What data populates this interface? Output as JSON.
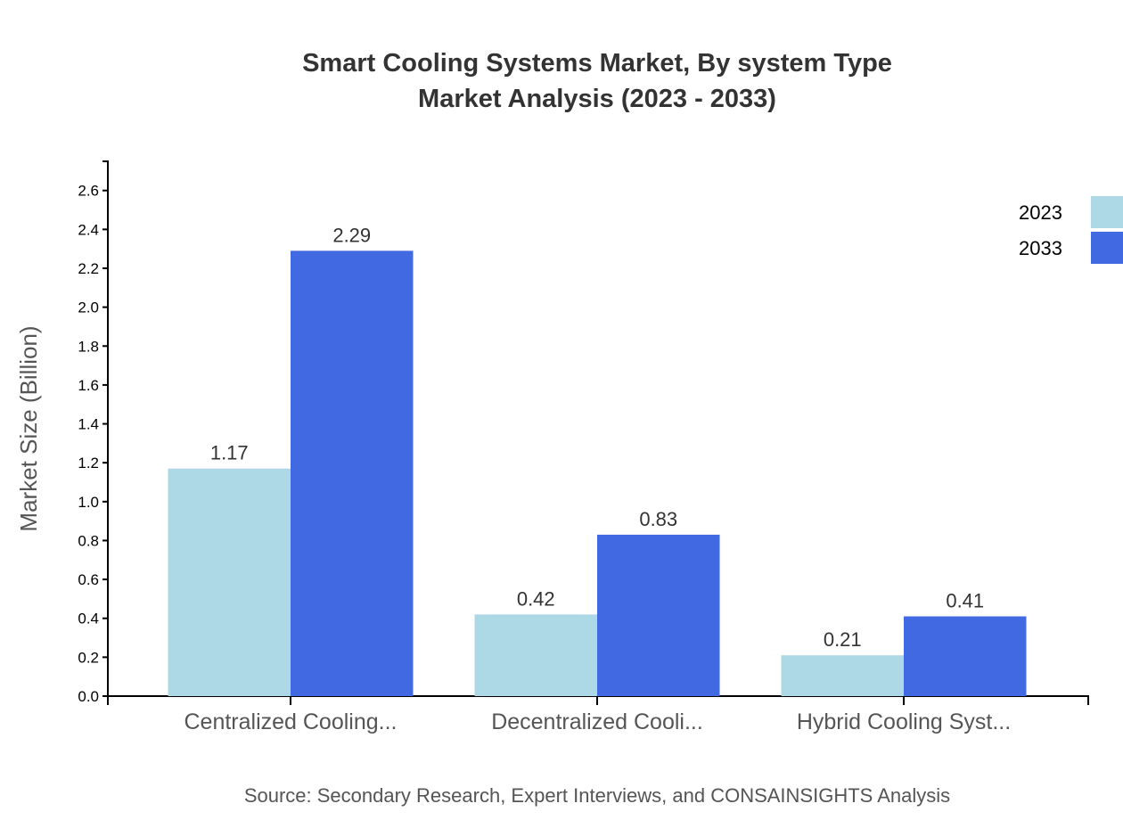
{
  "chart_data": {
    "type": "bar",
    "title": "Smart Cooling Systems Market, By system Type",
    "subtitle": "Market Analysis (2023 - 2033)",
    "xlabel": "",
    "ylabel": "Market Size (Billion)",
    "ylim": [
      0,
      2.75
    ],
    "yticks": [
      "0.0",
      "0.2",
      "0.4",
      "0.6",
      "0.8",
      "1.0",
      "1.2",
      "1.4",
      "1.6",
      "1.8",
      "2.0",
      "2.2",
      "2.4",
      "2.6"
    ],
    "categories": [
      "Centralized Cooling...",
      "Decentralized Cooli...",
      "Hybrid Cooling Syst..."
    ],
    "series": [
      {
        "name": "2023",
        "color": "#add8e6",
        "values": [
          1.17,
          0.42,
          0.21
        ]
      },
      {
        "name": "2033",
        "color": "#4169e1",
        "values": [
          2.29,
          0.83,
          0.41
        ]
      }
    ],
    "grid": false,
    "legend": "top-right",
    "source": "Source: Secondary Research, Expert Interviews, and CONSAINSIGHTS Analysis"
  }
}
